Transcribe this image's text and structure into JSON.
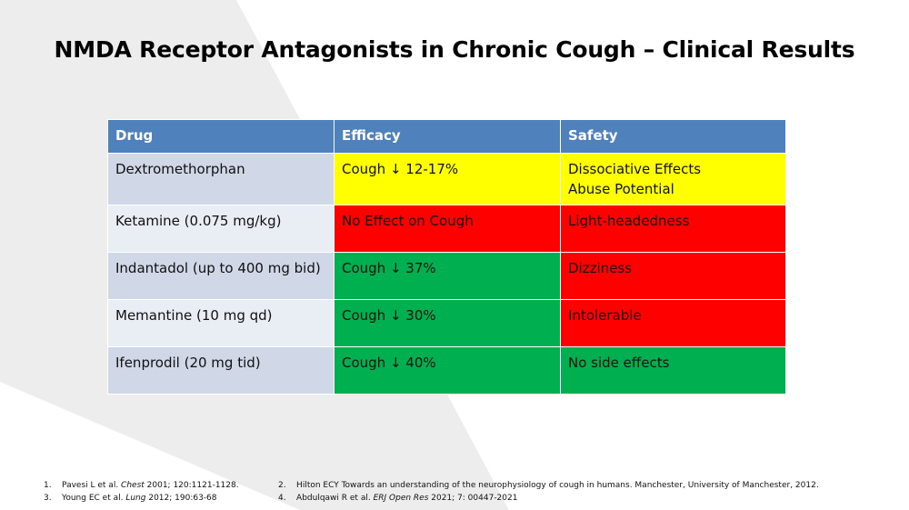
{
  "slide": {
    "title": "NMDA Receptor Antagonists in Chronic Cough – Clinical Results",
    "colors": {
      "header": "#4f81bd",
      "drug_cell_dark": "#d0d8e8",
      "drug_cell_light": "#e9edf4",
      "yellow": "#ffff00",
      "red": "#ff0000",
      "green": "#00b050"
    }
  },
  "table": {
    "headers": [
      "Drug",
      "Efficacy",
      "Safety"
    ],
    "rows": [
      {
        "drug": "Dextromethorphan",
        "efficacy": "Cough ↓ 12-17%",
        "efficacy_color": "yellow",
        "safety_1": "Dissociative Effects",
        "safety_2": "Abuse Potential",
        "safety_color": "yellow"
      },
      {
        "drug": "Ketamine (0.075 mg/kg)",
        "efficacy": "No Effect on Cough",
        "efficacy_color": "red",
        "safety_1": "Light-headedness",
        "safety_2": "",
        "safety_color": "red"
      },
      {
        "drug": "Indantadol (up to 400 mg bid)",
        "efficacy": "Cough ↓ 37%",
        "efficacy_color": "green",
        "safety_1": "Dizziness",
        "safety_2": "",
        "safety_color": "red"
      },
      {
        "drug": "Memantine (10 mg qd)",
        "efficacy": "Cough ↓ 30%",
        "efficacy_color": "green",
        "safety_1": "Intolerable",
        "safety_2": "",
        "safety_color": "red"
      },
      {
        "drug": "Ifenprodil (20 mg tid)",
        "efficacy": "Cough ↓ 40%",
        "efficacy_color": "green",
        "safety_1": "No side effects",
        "safety_2": "",
        "safety_color": "green"
      }
    ]
  },
  "references": [
    {
      "num": "1.",
      "pre": "Pavesi L et al. ",
      "journal": "Chest",
      "post": " 2001; 120:1121-1128."
    },
    {
      "num": "2.",
      "pre": "Hilton ECY Towards an understanding of the neurophysiology of cough in humans. Manchester, University of Manchester, 2012.",
      "journal": "",
      "post": ""
    },
    {
      "num": "3.",
      "pre": "Young EC et al. ",
      "journal": "Lung",
      "post": " 2012; 190:63-68"
    },
    {
      "num": "4.",
      "pre": "Abdulqawi R et al. ",
      "journal": "ERJ Open Res",
      "post": " 2021; 7: 00447-2021"
    }
  ]
}
